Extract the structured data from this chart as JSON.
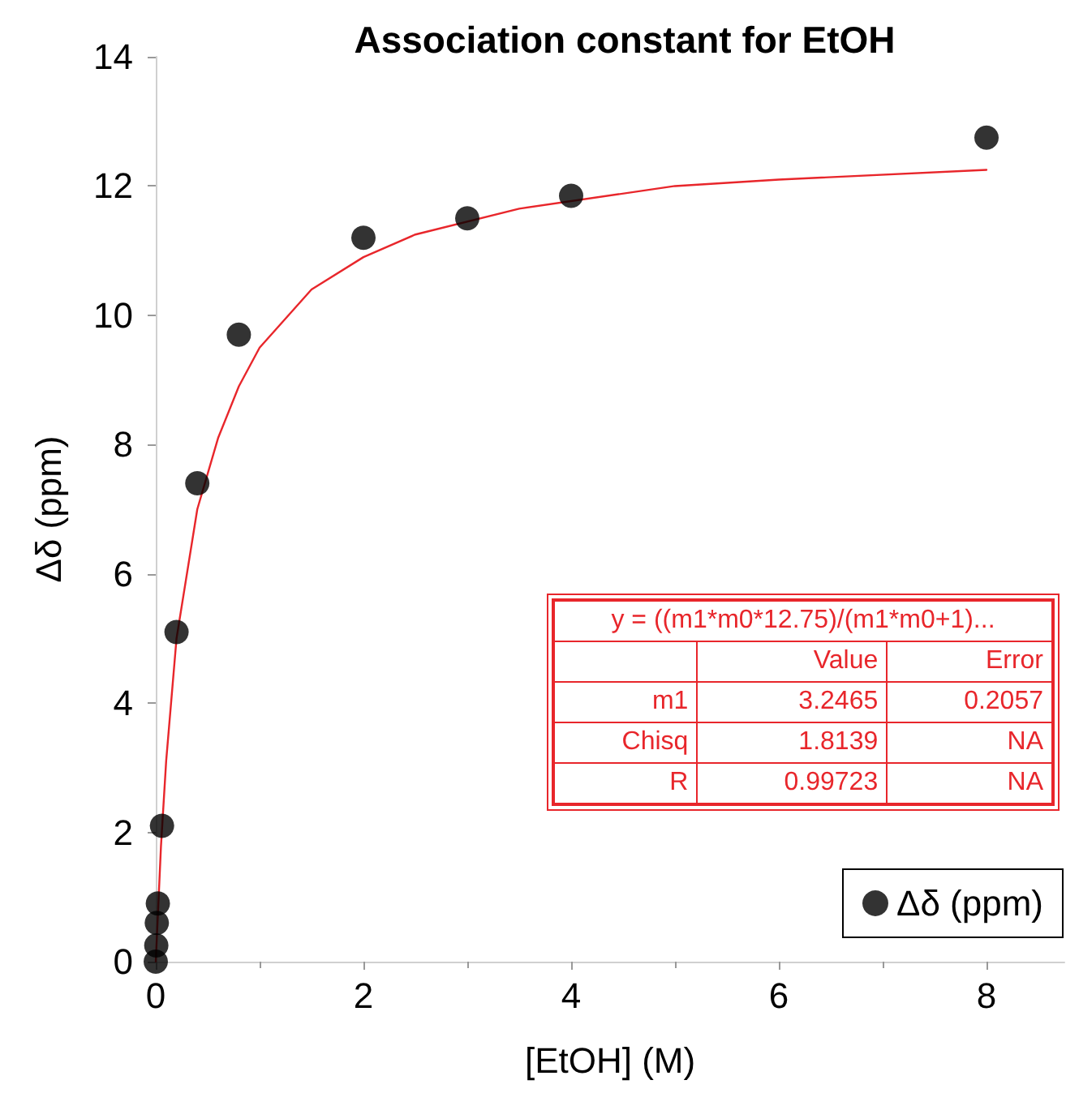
{
  "chart_data": {
    "type": "scatter",
    "title": "Association constant for EtOH",
    "xlabel": "[EtOH] (M)",
    "ylabel": "Δδ (ppm)",
    "xlim": [
      0,
      8.75
    ],
    "xticks": [
      0,
      2,
      4,
      6,
      8
    ],
    "ylim": [
      0,
      14
    ],
    "yticks": [
      0,
      2,
      4,
      6,
      8,
      10,
      12,
      14
    ],
    "grid": false,
    "legend": "bottom right",
    "marker": "circle",
    "series": [
      {
        "name": "Δδ (ppm)",
        "color": "#000000",
        "x": [
          0,
          0.005,
          0.01,
          0.02,
          0.06,
          0.2,
          0.4,
          0.8,
          2,
          3,
          4,
          8
        ],
        "values": [
          0,
          0.25,
          0.6,
          0.9,
          2.1,
          5.1,
          7.4,
          9.7,
          11.2,
          11.5,
          11.85,
          12.75
        ]
      },
      {
        "type": "line",
        "color": "#e8262b",
        "marker": "none",
        "line_style": "solid",
        "x": [
          0,
          0.05,
          0.1,
          0.2,
          0.4,
          0.6,
          0.8,
          1,
          1.5,
          2,
          2.5,
          3.5,
          5,
          6,
          8
        ],
        "values": [
          0,
          1.78,
          3.1,
          5.0,
          7.0,
          8.1,
          8.9,
          9.5,
          10.4,
          10.9,
          11.25,
          11.65,
          12.0,
          12.1,
          12.25
        ]
      }
    ],
    "annotations": [
      "y = ((m1*m0*12.75)/(m1*m0+1)...",
      "Value",
      "Error",
      "m1",
      "3.2465",
      "0.2057",
      "Chisq",
      "1.8139",
      "NA",
      "R",
      "0.99723",
      "NA"
    ]
  }
}
